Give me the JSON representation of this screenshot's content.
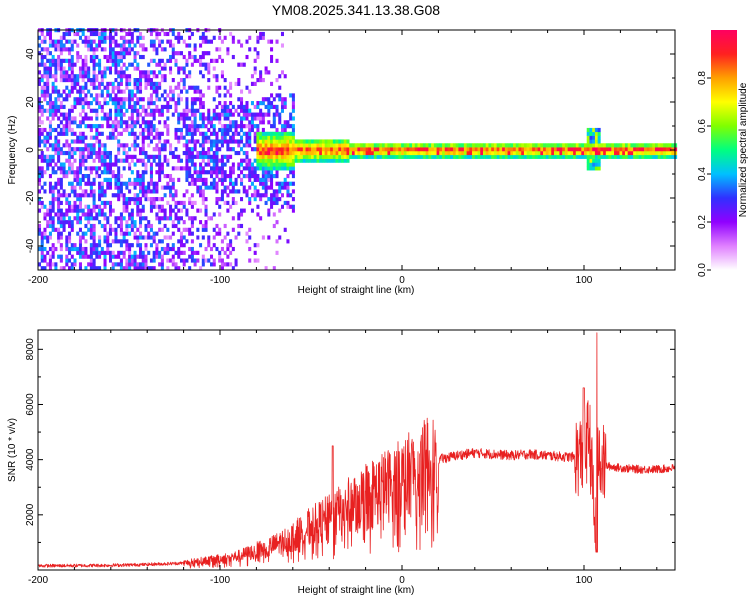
{
  "title": "YM08.2025.341.13.38.G08",
  "chart_data": [
    {
      "type": "heatmap",
      "name": "spectrogram",
      "xlabel": "Height of straight line (km)",
      "ylabel": "Frequency (Hz)",
      "xlim": [
        -200,
        150
      ],
      "ylim": [
        -50,
        50
      ],
      "xticks": [
        -200,
        -100,
        0,
        100
      ],
      "xtick_labels": [
        "-200",
        "-100",
        "0",
        "100"
      ],
      "yticks": [
        -40,
        -20,
        0,
        20,
        40
      ],
      "ytick_labels": [
        "-40",
        "-20",
        "0",
        "20",
        "40"
      ],
      "colorbar": {
        "label": "Normalized spectral amplitude",
        "range": [
          0,
          1
        ],
        "ticks": [
          0.0,
          0.2,
          0.4,
          0.6,
          0.8
        ],
        "tick_labels": [
          "0.0",
          "0.2",
          "0.4",
          "0.6",
          "0.8"
        ],
        "colors": [
          "#ffffff",
          "#e080ff",
          "#9000ff",
          "#3030ff",
          "#00c0ff",
          "#00ff80",
          "#80ff00",
          "#ffff00",
          "#ffa000",
          "#ff2020",
          "#ff0060"
        ]
      },
      "features": {
        "noise_region_x": [
          -200,
          -60
        ],
        "signal_line_freq_hz": 0,
        "signal_line_x": [
          -60,
          150
        ],
        "disturbance_x": 105
      }
    },
    {
      "type": "line",
      "name": "snr",
      "xlabel": "Height of straight line (km)",
      "ylabel": "SNR (10 * v/v)",
      "xlim": [
        -200,
        150
      ],
      "ylim": [
        0,
        8700
      ],
      "xticks": [
        -200,
        -100,
        0,
        100
      ],
      "xtick_labels": [
        "-200",
        "-100",
        "0",
        "100"
      ],
      "yticks": [
        2000,
        4000,
        6000,
        8000
      ],
      "ytick_labels": [
        "2000",
        "4000",
        "6000",
        "8000"
      ],
      "color": "#e82020",
      "series": [
        {
          "name": "SNR",
          "x": [
            -200,
            -180,
            -160,
            -140,
            -120,
            -100,
            -90,
            -80,
            -70,
            -60,
            -50,
            -40,
            -30,
            -20,
            -10,
            0,
            10,
            20,
            30,
            40,
            50,
            60,
            70,
            80,
            90,
            95,
            100,
            103,
            106,
            108,
            110,
            120,
            130,
            140,
            150
          ],
          "y": [
            150,
            160,
            170,
            200,
            250,
            400,
            500,
            700,
            900,
            1200,
            1600,
            1900,
            2300,
            2700,
            3000,
            3300,
            3700,
            4000,
            4150,
            4250,
            4200,
            4150,
            4200,
            4150,
            4100,
            4100,
            4200,
            5000,
            1500,
            4500,
            3800,
            3700,
            3650,
            3650,
            3700
          ]
        }
      ],
      "spikes": [
        {
          "x": -38,
          "y": 4500
        },
        {
          "x": 100,
          "y": 6600
        },
        {
          "x": 107,
          "y": 8600
        },
        {
          "x": 107,
          "y": 650
        }
      ]
    }
  ]
}
